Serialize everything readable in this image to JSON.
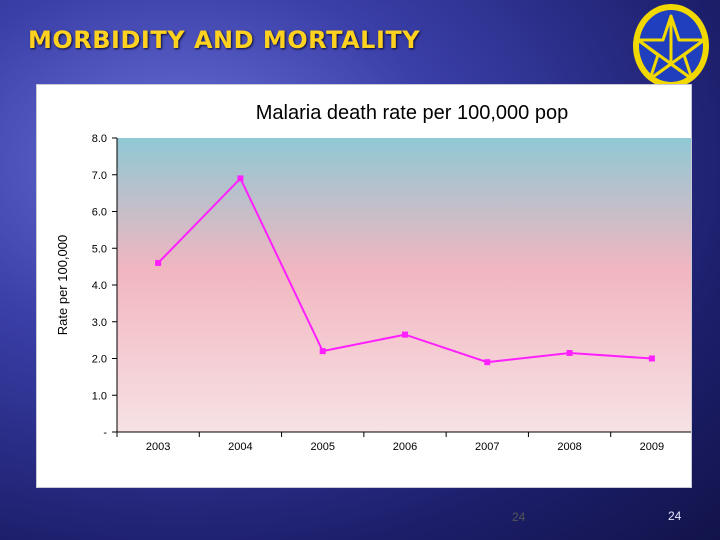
{
  "slide": {
    "title": "MORBIDITY AND MORTALITY",
    "page_number_inner": "24",
    "page_number_outer": "24",
    "emblem": "star-emblem-icon"
  },
  "colors": {
    "title": "#ffd21f",
    "series": "#ff1fff",
    "plot_top": "#8fc8d4",
    "plot_mid": "#f2b6c0",
    "plot_bottom": "#f6e2e4"
  },
  "chart_data": {
    "type": "line",
    "title": "Malaria death rate per 100,000 pop",
    "xlabel": "",
    "ylabel": "Rate per 100,000",
    "categories": [
      "2003",
      "2004",
      "2005",
      "2006",
      "2007",
      "2008",
      "2009"
    ],
    "series": [
      {
        "name": "Malaria death rate",
        "values": [
          4.6,
          6.9,
          2.2,
          2.65,
          1.9,
          2.15,
          2.0
        ]
      }
    ],
    "ylim": [
      0,
      8
    ],
    "yticks": [
      0,
      1,
      2,
      3,
      4,
      5,
      6,
      7,
      8
    ],
    "ytick_labels": [
      "-",
      "1.0",
      "2.0",
      "3.0",
      "4.0",
      "5.0",
      "6.0",
      "7.0",
      "8.0"
    ],
    "grid": false,
    "legend": "none"
  }
}
